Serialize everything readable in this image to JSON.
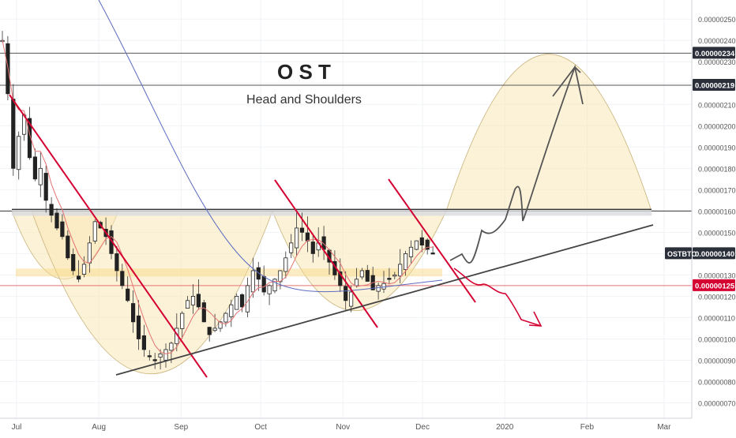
{
  "header": {
    "title": "O S T",
    "subtitle": "Head and Shoulders"
  },
  "symbol": "OSTBTC",
  "chart_data": {
    "type": "candlestick",
    "title": "O S T",
    "subtitle": "Head and Shoulders",
    "x_ticks": [
      "Jul",
      "Aug",
      "Sep",
      "Oct",
      "Nov",
      "Dec",
      "2020",
      "Feb",
      "Mar"
    ],
    "x_tick_days": [
      0,
      31,
      62,
      92,
      123,
      153,
      184,
      215,
      244
    ],
    "y_ticks": [
      "0.00000070",
      "0.00000080",
      "0.00000090",
      "0.00000100",
      "0.00000110",
      "0.00000120",
      "0.00000130",
      "0.00000140",
      "0.00000150",
      "0.00000160",
      "0.00000170",
      "0.00000180",
      "0.00000190",
      "0.00000200",
      "0.00000210",
      "0.00000220",
      "0.00000230",
      "0.00000240",
      "0.00000250"
    ],
    "ylim": [
      6.5e-07,
      2.56e-06
    ],
    "price_labels": [
      {
        "label": "0.00000234",
        "value": 2.34e-06,
        "style": "dark"
      },
      {
        "label": "0.00000219",
        "value": 2.19e-06,
        "style": "dark"
      },
      {
        "label": "0.00000140",
        "value": 1.4e-06,
        "style": "dark",
        "tag": "OSTBTC"
      },
      {
        "label": "0.00000125",
        "value": 1.25e-06,
        "style": "red"
      }
    ],
    "levels": [
      {
        "value": 2.34e-06,
        "color": "#555555"
      },
      {
        "value": 2.19e-06,
        "color": "#555555"
      },
      {
        "value": 1.6e-06,
        "color": "#333333"
      },
      {
        "value": 1.25e-06,
        "color": "#e57373"
      }
    ],
    "candles_close": [
      2.4e-06,
      2.15e-06,
      1.8e-06,
      1.95e-06,
      2.05e-06,
      1.85e-06,
      1.75e-06,
      1.8e-06,
      1.65e-06,
      1.58e-06,
      1.52e-06,
      1.48e-06,
      1.38e-06,
      1.32e-06,
      1.28e-06,
      1.35e-06,
      1.45e-06,
      1.55e-06,
      1.52e-06,
      1.48e-06,
      1.4e-06,
      1.32e-06,
      1.25e-06,
      1.18e-06,
      1.08e-06,
      1e-06,
      9.5e-07,
      9.2e-07,
      9e-07,
      9.3e-07,
      9.5e-07,
      9.8e-07,
      1.05e-06,
      1.12e-06,
      1.18e-06,
      1.2e-06,
      1.15e-06,
      1.08e-06,
      1.02e-06,
      1.05e-06,
      1.08e-06,
      1.12e-06,
      1.16e-06,
      1.2e-06,
      1.15e-06,
      1.25e-06,
      1.32e-06,
      1.28e-06,
      1.22e-06,
      1.25e-06,
      1.28e-06,
      1.32e-06,
      1.38e-06,
      1.45e-06,
      1.52e-06,
      1.5e-06,
      1.46e-06,
      1.4e-06,
      1.45e-06,
      1.42e-06,
      1.36e-06,
      1.3e-06,
      1.25e-06,
      1.18e-06,
      1.22e-06,
      1.28e-06,
      1.32e-06,
      1.27e-06,
      1.23e-06,
      1.25e-06,
      1.26e-06,
      1.28e-06,
      1.3e-06,
      1.35e-06,
      1.4e-06,
      1.43e-06,
      1.46e-06,
      1.44e-06,
      1.42e-06,
      1.4e-06
    ],
    "volatility": 1.2e-07
  }
}
